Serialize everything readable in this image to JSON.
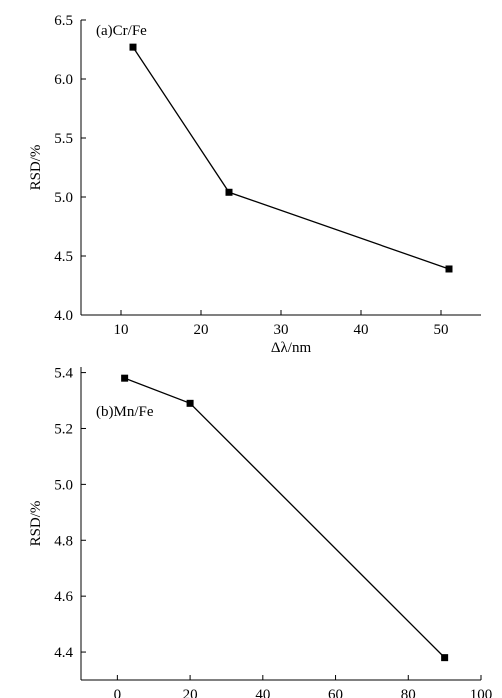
{
  "chart_data": [
    {
      "type": "line",
      "title": "",
      "panel_label": "(a)Cr/Fe",
      "xlabel": "Δλ/nm",
      "ylabel": "RSD/%",
      "xlim": [
        5,
        55
      ],
      "ylim": [
        4.0,
        6.5
      ],
      "xticks": [
        10,
        20,
        30,
        40,
        50
      ],
      "yticks": [
        4.0,
        4.5,
        5.0,
        5.5,
        6.0,
        6.5
      ],
      "xtick_labels": [
        "10",
        "20",
        "30",
        "40",
        "50"
      ],
      "ytick_labels": [
        "4.0",
        "4.5",
        "5.0",
        "5.5",
        "6.0",
        "6.5"
      ],
      "grid": false,
      "marker": "square",
      "color": "#000000",
      "series": [
        {
          "x": [
            11.5,
            23.5,
            51
          ],
          "values": [
            6.27,
            5.04,
            4.39
          ]
        }
      ]
    },
    {
      "type": "line",
      "title": "",
      "panel_label": "(b)Mn/Fe",
      "xlabel": "Δλ/nm",
      "ylabel": "RSD/%",
      "xlim": [
        -10,
        100
      ],
      "ylim": [
        4.3,
        5.42
      ],
      "xticks": [
        0,
        20,
        40,
        60,
        80,
        100
      ],
      "yticks": [
        4.4,
        4.6,
        4.8,
        5.0,
        5.2,
        5.4
      ],
      "xtick_labels": [
        "0",
        "20",
        "40",
        "60",
        "80",
        "100"
      ],
      "ytick_labels": [
        "4.4",
        "4.6",
        "4.8",
        "5.0",
        "5.2",
        "5.4"
      ],
      "grid": false,
      "marker": "square",
      "color": "#000000",
      "series": [
        {
          "x": [
            2,
            20,
            90
          ],
          "values": [
            5.38,
            5.29,
            4.38
          ]
        }
      ]
    }
  ]
}
